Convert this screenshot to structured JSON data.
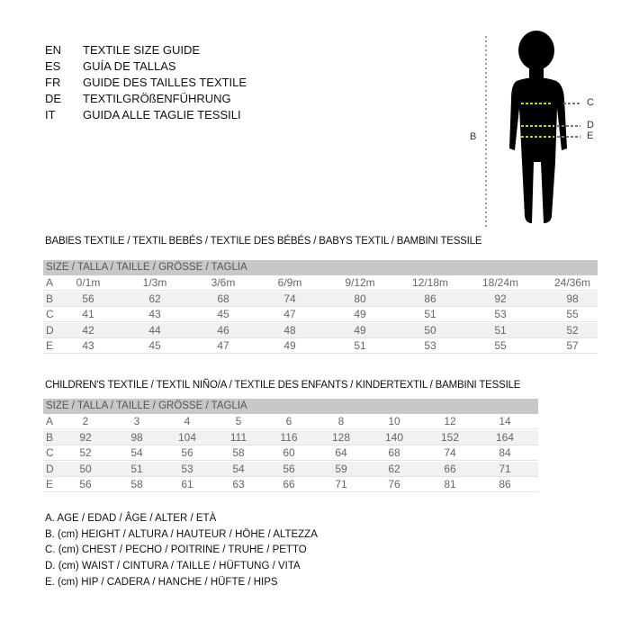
{
  "languages": [
    {
      "code": "EN",
      "text": "TEXTILE SIZE GUIDE"
    },
    {
      "code": "ES",
      "text": "GUÍA DE TALLAS"
    },
    {
      "code": "FR",
      "text": "GUIDE DES TAILLES TEXTILE"
    },
    {
      "code": "DE",
      "text": "TEXTILGRÖßENFÜHRUNG"
    },
    {
      "code": "IT",
      "text": "GUIDA ALLE TAGLIE TESSILI"
    }
  ],
  "figure": {
    "labels": {
      "b": "B",
      "c": "C",
      "d": "D",
      "e": "E"
    },
    "measure_line_color": "#c8d400"
  },
  "babies": {
    "title": "BABIES TEXTILE / TEXTIL BEBÉS / TEXTILE DES BÉBÉS / BABYS TEXTIL  / BAMBINI TESSILE",
    "header": "SIZE / TALLA / TAILLE / GRÖSSE / TAGLIA",
    "rows": [
      {
        "label": "A",
        "values": [
          "0/1m",
          "1/3m",
          "3/6m",
          "6/9m",
          "9/12m",
          "12/18m",
          "18/24m",
          "24/36m"
        ]
      },
      {
        "label": "B",
        "values": [
          "56",
          "62",
          "68",
          "74",
          "80",
          "86",
          "92",
          "98"
        ]
      },
      {
        "label": "C",
        "values": [
          "41",
          "43",
          "45",
          "47",
          "49",
          "51",
          "53",
          "55"
        ]
      },
      {
        "label": "D",
        "values": [
          "42",
          "44",
          "46",
          "48",
          "49",
          "50",
          "51",
          "52"
        ]
      },
      {
        "label": "E",
        "values": [
          "43",
          "45",
          "47",
          "49",
          "51",
          "53",
          "55",
          "57"
        ]
      }
    ]
  },
  "children": {
    "title": "CHILDREN'S TEXTILE / TEXTIL NIÑO/A / TEXTILE DES ENFANTS / KINDERTEXTIL / BAMBINI TESSILE",
    "header": "SIZE / TALLA / TAILLE / GRÖSSE / TAGLIA",
    "rows": [
      {
        "label": "A",
        "values": [
          "2",
          "3",
          "4",
          "5",
          "6",
          "8",
          "10",
          "12",
          "14"
        ]
      },
      {
        "label": "B",
        "values": [
          "92",
          "98",
          "104",
          "111",
          "116",
          "128",
          "140",
          "152",
          "164"
        ]
      },
      {
        "label": "C",
        "values": [
          "52",
          "54",
          "56",
          "58",
          "60",
          "64",
          "68",
          "74",
          "84"
        ]
      },
      {
        "label": "D",
        "values": [
          "50",
          "51",
          "53",
          "54",
          "56",
          "59",
          "62",
          "66",
          "71"
        ]
      },
      {
        "label": "E",
        "values": [
          "56",
          "58",
          "61",
          "63",
          "66",
          "71",
          "76",
          "81",
          "86"
        ]
      }
    ]
  },
  "legend": [
    "A. AGE / EDAD / ÂGE / ALTER / ETÀ",
    "B. (cm) HEIGHT / ALTURA / HAUTEUR / HÖHE / ALTEZZA",
    "C. (cm) CHEST / PECHO / POITRINE / TRUHE / PETTO",
    "D. (cm) WAIST / CINTURA / TAILLE / HÜFTUNG / VITA",
    "E. (cm) HIP / CADERA / HANCHE / HÜFTE / HIPS"
  ]
}
